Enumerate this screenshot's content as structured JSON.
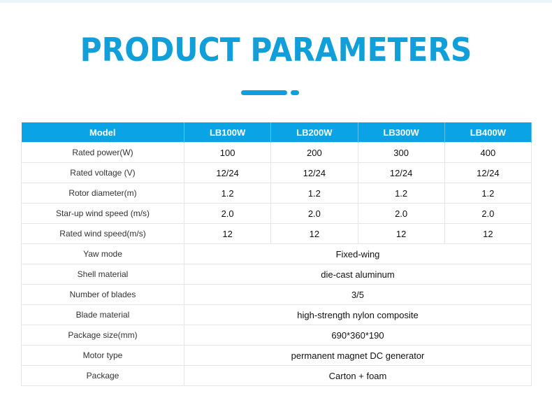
{
  "title": "PRODUCT PARAMETERS",
  "header": [
    "Model",
    "LB100W",
    "LB200W",
    "LB300W",
    "LB400W"
  ],
  "rows_multi": [
    {
      "label": "Rated power(W)",
      "values": [
        "100",
        "200",
        "300",
        "400"
      ]
    },
    {
      "label": "Rated voltage (V)",
      "values": [
        "12/24",
        "12/24",
        "12/24",
        "12/24"
      ]
    },
    {
      "label": "Rotor diameter(m)",
      "values": [
        "1.2",
        "1.2",
        "1.2",
        "1.2"
      ]
    },
    {
      "label": "Star-up wind speed (m/s)",
      "values": [
        "2.0",
        "2.0",
        "2.0",
        "2.0"
      ]
    },
    {
      "label": "Rated wind speed(m/s)",
      "values": [
        "12",
        "12",
        "12",
        "12"
      ]
    }
  ],
  "rows_single": [
    {
      "label": "Yaw mode",
      "value": "Fixed-wing"
    },
    {
      "label": "Shell material",
      "value": "die-cast aluminum"
    },
    {
      "label": "Number of blades",
      "value": "3/5"
    },
    {
      "label": "Blade material",
      "value": "high-strength nylon composite"
    },
    {
      "label": "Package size(mm)",
      "value": "690*360*190"
    },
    {
      "label": "Motor type",
      "value": "permanent magnet DC generator"
    },
    {
      "label": "Package",
      "value": "Carton + foam"
    }
  ]
}
